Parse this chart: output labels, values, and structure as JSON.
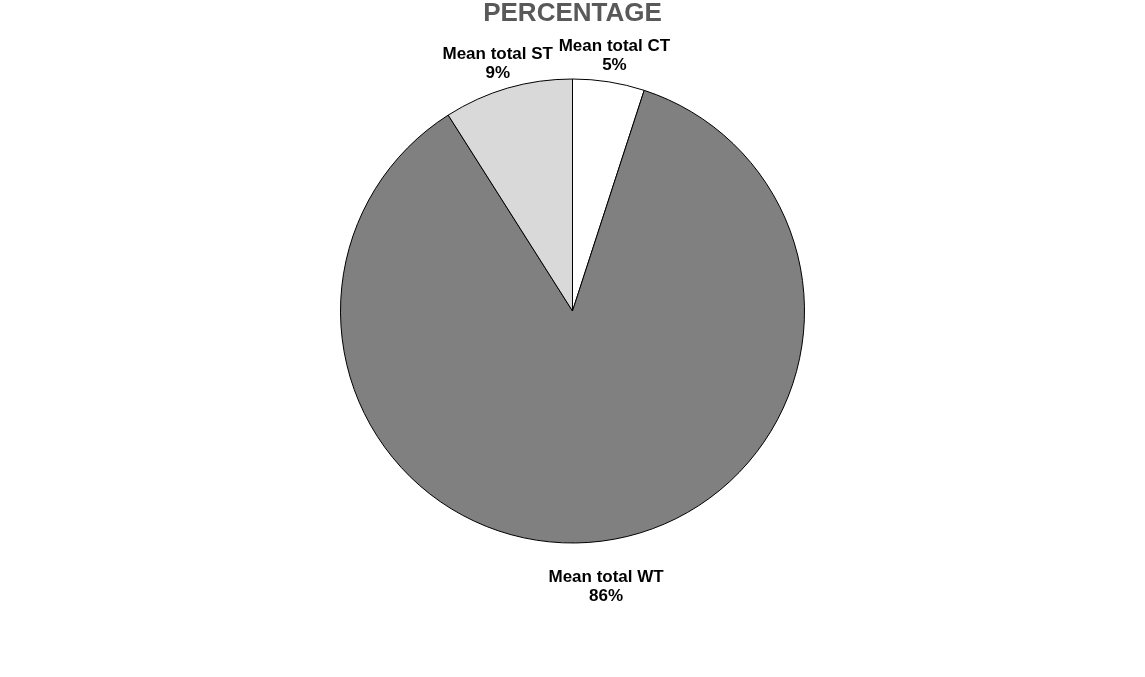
{
  "chart_data": {
    "type": "pie",
    "title": "PERCENTAGE",
    "categories": [
      "Mean total CT",
      "Mean total WT",
      "Mean total ST"
    ],
    "values": [
      5,
      86,
      9
    ],
    "colors": [
      "#ffffff",
      "#808080",
      "#d9d9d9"
    ],
    "value_labels": [
      "5%",
      "86%",
      "9%"
    ],
    "legend": false
  }
}
